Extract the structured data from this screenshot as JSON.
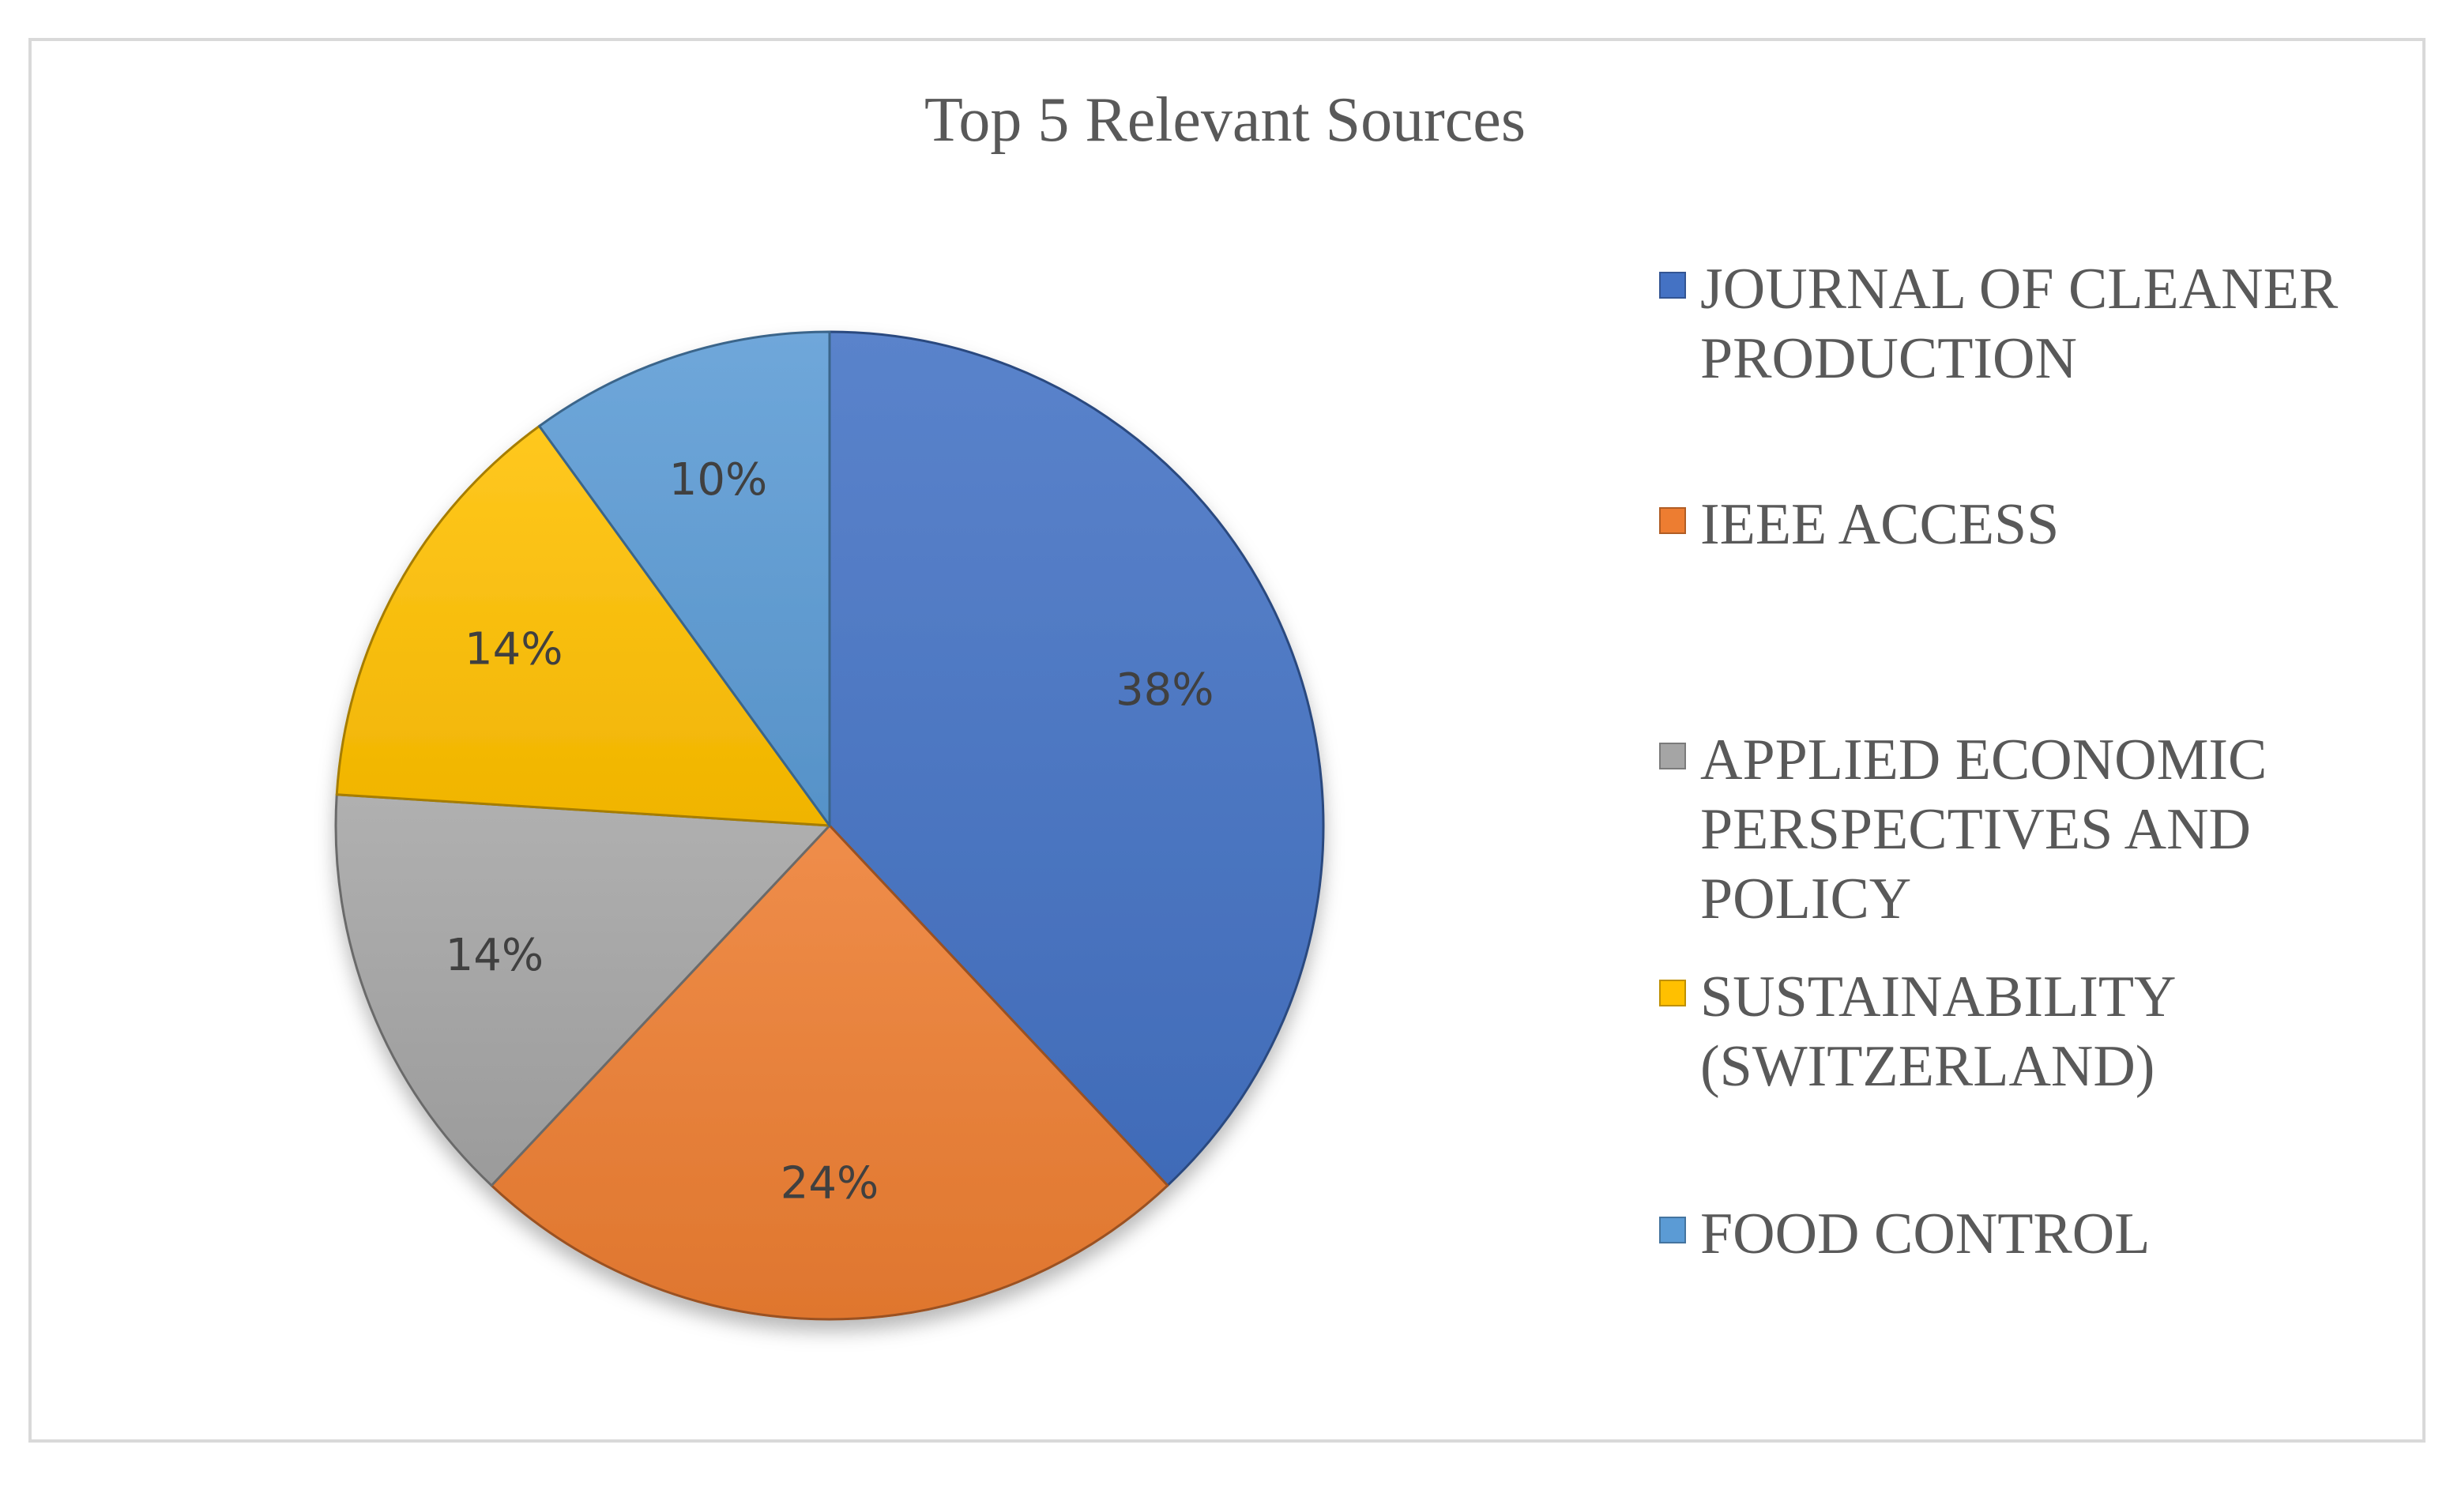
{
  "chart_data": {
    "type": "pie",
    "title": "Top 5 Relevant Sources",
    "legend_position": "right",
    "categories": [
      "JOURNAL OF CLEANER PRODUCTION",
      "IEEE ACCESS",
      "APPLIED ECONOMIC PERSPECTIVES AND POLICY",
      "SUSTAINABILITY (SWITZERLAND)",
      "FOOD CONTROL"
    ],
    "values": [
      38,
      24,
      14,
      14,
      10
    ],
    "labels": [
      "38%",
      "24%",
      "14%",
      "14%",
      "10%"
    ],
    "colors": [
      "#4472C4",
      "#ED7D31",
      "#A5A5A5",
      "#FFC000",
      "#5B9BD5"
    ]
  }
}
